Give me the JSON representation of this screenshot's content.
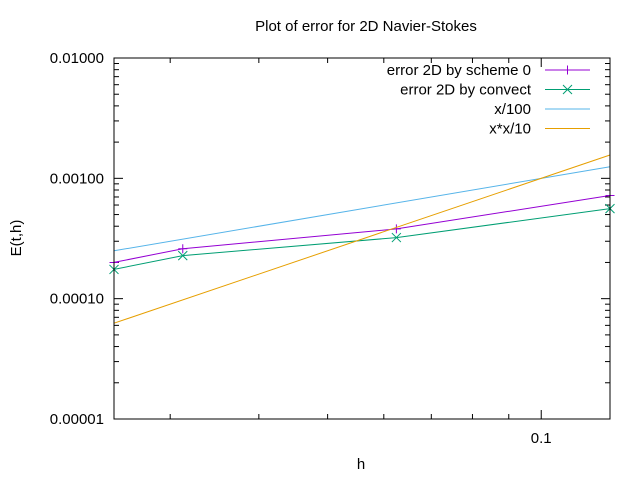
{
  "chart_data": {
    "type": "line",
    "title": "Plot of error for 2D Navier-Stokes",
    "xlabel": "h",
    "ylabel": "E(t,h)",
    "xscale": "log",
    "yscale": "log",
    "xlim": [
      0.025,
      0.125
    ],
    "ylim": [
      1e-05,
      0.01
    ],
    "x_ticks": [
      0.1
    ],
    "x_tick_labels": [
      "0.1"
    ],
    "y_ticks": [
      1e-05,
      0.0001,
      0.001,
      0.01
    ],
    "y_tick_labels": [
      "0.00001",
      "0.00010",
      "0.00100",
      "0.01000"
    ],
    "grid": false,
    "legend_position": "top-right",
    "series": [
      {
        "name": "error 2D by scheme 0",
        "color": "#9400d3",
        "marker": "plus",
        "x": [
          0.025,
          0.03125,
          0.0625,
          0.125
        ],
        "y": [
          0.0002,
          0.00026,
          0.00038,
          0.00072
        ]
      },
      {
        "name": "error 2D by convect",
        "color": "#009e73",
        "marker": "cross",
        "x": [
          0.025,
          0.03125,
          0.0625,
          0.125
        ],
        "y": [
          0.000175,
          0.000228,
          0.000322,
          0.00056
        ]
      },
      {
        "name": "x/100",
        "color": "#56b4e9",
        "marker": "none",
        "x": [
          0.025,
          0.125
        ],
        "y": [
          0.00025,
          0.00125
        ]
      },
      {
        "name": "x*x/10",
        "color": "#e69f00",
        "marker": "none",
        "x": [
          0.025,
          0.125
        ],
        "y": [
          6.25e-05,
          0.0015625
        ]
      }
    ]
  }
}
